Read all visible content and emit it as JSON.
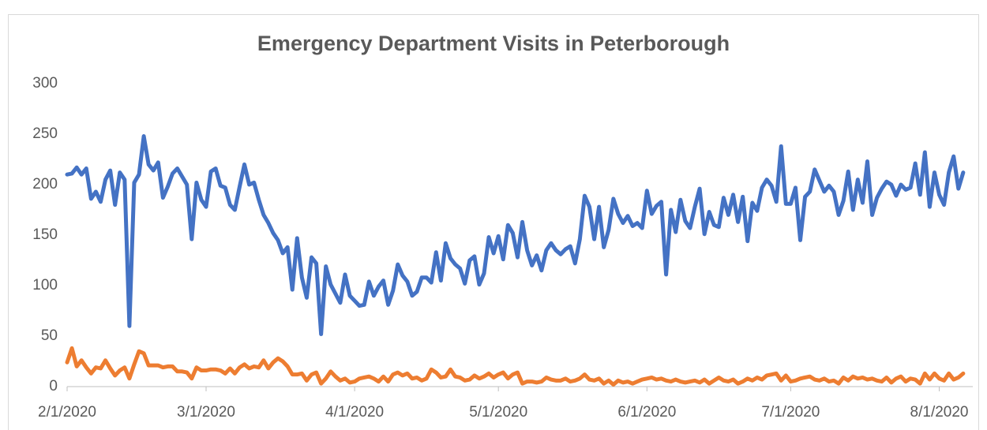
{
  "chart_data": {
    "type": "line",
    "title": "Emergency Department Visits in Peterborough",
    "x": [
      "2/1/2020",
      "2/2/2020",
      "2/3/2020",
      "2/4/2020",
      "2/5/2020",
      "2/6/2020",
      "2/7/2020",
      "2/8/2020",
      "2/9/2020",
      "2/10/2020",
      "2/11/2020",
      "2/12/2020",
      "2/13/2020",
      "2/14/2020",
      "2/15/2020",
      "2/16/2020",
      "2/17/2020",
      "2/18/2020",
      "2/19/2020",
      "2/20/2020",
      "2/21/2020",
      "2/22/2020",
      "2/23/2020",
      "2/24/2020",
      "2/25/2020",
      "2/26/2020",
      "2/27/2020",
      "2/28/2020",
      "2/29/2020",
      "3/1/2020",
      "3/2/2020",
      "3/3/2020",
      "3/4/2020",
      "3/5/2020",
      "3/6/2020",
      "3/7/2020",
      "3/8/2020",
      "3/9/2020",
      "3/10/2020",
      "3/11/2020",
      "3/12/2020",
      "3/13/2020",
      "3/14/2020",
      "3/15/2020",
      "3/16/2020",
      "3/17/2020",
      "3/18/2020",
      "3/19/2020",
      "3/20/2020",
      "3/21/2020",
      "3/22/2020",
      "3/23/2020",
      "3/24/2020",
      "3/25/2020",
      "3/26/2020",
      "3/27/2020",
      "3/28/2020",
      "3/29/2020",
      "3/30/2020",
      "3/31/2020",
      "4/1/2020",
      "4/2/2020",
      "4/3/2020",
      "4/4/2020",
      "4/5/2020",
      "4/6/2020",
      "4/7/2020",
      "4/8/2020",
      "4/9/2020",
      "4/10/2020",
      "4/11/2020",
      "4/12/2020",
      "4/13/2020",
      "4/14/2020",
      "4/15/2020",
      "4/16/2020",
      "4/17/2020",
      "4/18/2020",
      "4/19/2020",
      "4/20/2020",
      "4/21/2020",
      "4/22/2020",
      "4/23/2020",
      "4/24/2020",
      "4/25/2020",
      "4/26/2020",
      "4/27/2020",
      "4/28/2020",
      "4/29/2020",
      "4/30/2020",
      "5/1/2020",
      "5/2/2020",
      "5/3/2020",
      "5/4/2020",
      "5/5/2020",
      "5/6/2020",
      "5/7/2020",
      "5/8/2020",
      "5/9/2020",
      "5/10/2020",
      "5/11/2020",
      "5/12/2020",
      "5/13/2020",
      "5/14/2020",
      "5/15/2020",
      "5/16/2020",
      "5/17/2020",
      "5/18/2020",
      "5/19/2020",
      "5/20/2020",
      "5/21/2020",
      "5/22/2020",
      "5/23/2020",
      "5/24/2020",
      "5/25/2020",
      "5/26/2020",
      "5/27/2020",
      "5/28/2020",
      "5/29/2020",
      "5/30/2020",
      "5/31/2020",
      "6/1/2020",
      "6/2/2020",
      "6/3/2020",
      "6/4/2020",
      "6/5/2020",
      "6/6/2020",
      "6/7/2020",
      "6/8/2020",
      "6/9/2020",
      "6/10/2020",
      "6/11/2020",
      "6/12/2020",
      "6/13/2020",
      "6/14/2020",
      "6/15/2020",
      "6/16/2020",
      "6/17/2020",
      "6/18/2020",
      "6/19/2020",
      "6/20/2020",
      "6/21/2020",
      "6/22/2020",
      "6/23/2020",
      "6/24/2020",
      "6/25/2020",
      "6/26/2020",
      "6/27/2020",
      "6/28/2020",
      "6/29/2020",
      "6/30/2020",
      "7/1/2020",
      "7/2/2020",
      "7/3/2020",
      "7/4/2020",
      "7/5/2020",
      "7/6/2020",
      "7/7/2020",
      "7/8/2020",
      "7/9/2020",
      "7/10/2020",
      "7/11/2020",
      "7/12/2020",
      "7/13/2020",
      "7/14/2020",
      "7/15/2020",
      "7/16/2020",
      "7/17/2020",
      "7/18/2020",
      "7/19/2020",
      "7/20/2020",
      "7/21/2020",
      "7/22/2020",
      "7/23/2020",
      "7/24/2020",
      "7/25/2020",
      "7/26/2020",
      "7/27/2020",
      "7/28/2020",
      "7/29/2020",
      "7/30/2020",
      "7/31/2020",
      "8/1/2020",
      "8/2/2020",
      "8/3/2020",
      "8/4/2020",
      "8/5/2020",
      "8/6/2020"
    ],
    "series": [
      {
        "color": "#4472c4",
        "values": [
          210,
          211,
          217,
          210,
          216,
          186,
          193,
          183,
          205,
          214,
          180,
          212,
          205,
          60,
          202,
          210,
          248,
          220,
          214,
          222,
          187,
          198,
          211,
          216,
          208,
          200,
          146,
          202,
          185,
          178,
          213,
          216,
          199,
          197,
          180,
          175,
          198,
          220,
          200,
          202,
          185,
          170,
          162,
          152,
          145,
          132,
          138,
          96,
          147,
          108,
          88,
          128,
          122,
          52,
          119,
          101,
          92,
          83,
          111,
          90,
          85,
          80,
          81,
          104,
          90,
          99,
          105,
          81,
          95,
          121,
          110,
          104,
          90,
          94,
          108,
          108,
          103,
          133,
          105,
          142,
          127,
          121,
          117,
          102,
          125,
          129,
          101,
          112,
          148,
          132,
          149,
          126,
          160,
          152,
          128,
          163,
          135,
          120,
          130,
          115,
          135,
          142,
          135,
          131,
          136,
          139,
          122,
          146,
          189,
          178,
          146,
          178,
          138,
          155,
          186,
          171,
          162,
          169,
          159,
          162,
          157,
          194,
          171,
          179,
          183,
          111,
          175,
          153,
          185,
          164,
          157,
          178,
          196,
          151,
          173,
          160,
          158,
          187,
          170,
          190,
          163,
          188,
          144,
          182,
          174,
          197,
          205,
          199,
          183,
          238,
          181,
          181,
          197,
          145,
          188,
          193,
          215,
          204,
          193,
          199,
          193,
          170,
          184,
          213,
          175,
          205,
          182,
          223,
          170,
          187,
          196,
          203,
          200,
          189,
          200,
          195,
          197,
          221,
          190,
          232,
          178,
          212,
          190,
          180,
          212,
          228,
          196,
          212
        ]
      },
      {
        "color": "#ed7d31",
        "values": [
          24,
          38,
          20,
          26,
          19,
          13,
          19,
          18,
          26,
          18,
          11,
          16,
          19,
          8,
          22,
          35,
          33,
          21,
          21,
          21,
          19,
          20,
          20,
          15,
          15,
          14,
          8,
          19,
          16,
          16,
          17,
          17,
          16,
          13,
          18,
          13,
          19,
          22,
          18,
          20,
          19,
          26,
          18,
          24,
          28,
          25,
          20,
          12,
          12,
          13,
          6,
          12,
          14,
          3,
          8,
          15,
          10,
          6,
          8,
          4,
          5,
          8,
          9,
          10,
          8,
          5,
          10,
          5,
          12,
          14,
          11,
          13,
          8,
          9,
          6,
          8,
          17,
          14,
          9,
          10,
          17,
          10,
          9,
          6,
          7,
          11,
          8,
          10,
          13,
          9,
          12,
          14,
          8,
          12,
          14,
          3,
          5,
          5,
          4,
          5,
          9,
          7,
          6,
          6,
          8,
          5,
          6,
          8,
          12,
          7,
          6,
          8,
          3,
          6,
          2,
          6,
          4,
          5,
          3,
          5,
          7,
          8,
          9,
          7,
          8,
          6,
          5,
          7,
          5,
          4,
          5,
          6,
          4,
          7,
          3,
          6,
          9,
          6,
          5,
          7,
          3,
          5,
          8,
          6,
          9,
          7,
          11,
          12,
          13,
          6,
          11,
          5,
          6,
          8,
          9,
          10,
          7,
          6,
          8,
          5,
          6,
          3,
          9,
          6,
          10,
          8,
          9,
          7,
          8,
          6,
          5,
          9,
          4,
          8,
          10,
          5,
          8,
          7,
          3,
          13,
          7,
          13,
          8,
          6,
          13,
          7,
          9,
          13
        ]
      }
    ],
    "xlim": [
      "2/1/2020",
      "8/8/2020"
    ],
    "xticks": [
      "2/1/2020",
      "3/1/2020",
      "4/1/2020",
      "5/1/2020",
      "6/1/2020",
      "7/1/2020",
      "8/1/2020"
    ],
    "ylim": [
      0,
      300
    ],
    "yticks": [
      0,
      50,
      100,
      150,
      200,
      250,
      300
    ],
    "grid": false
  }
}
